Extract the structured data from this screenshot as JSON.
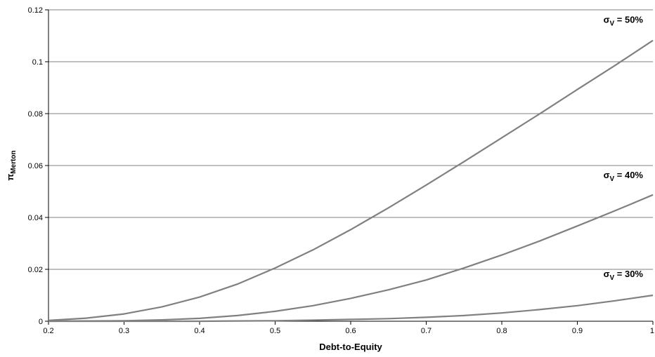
{
  "chart_data": {
    "type": "line",
    "title": "",
    "xlabel": "Debt-to-Equity",
    "ylabel": {
      "main": "π",
      "sub": "Merton"
    },
    "xlim": [
      0.2,
      1
    ],
    "ylim": [
      0,
      0.12
    ],
    "x_ticks": [
      "0.2",
      "0.3",
      "0.4",
      "0.5",
      "0.6",
      "0.7",
      "0.8",
      "0.9",
      "1"
    ],
    "y_ticks": [
      "0",
      "0.02",
      "0.04",
      "0.06",
      "0.08",
      "0.1",
      "0.12"
    ],
    "grid": "horizontal",
    "x": [
      0.2,
      0.25,
      0.3,
      0.35,
      0.4,
      0.45,
      0.5,
      0.55,
      0.6,
      0.65,
      0.7,
      0.75,
      0.8,
      0.85,
      0.9,
      0.95,
      1.0
    ],
    "series": [
      {
        "annotation": {
          "greek": "σ",
          "sub": "V",
          "text": " = 50%"
        },
        "values": [
          0.0003,
          0.0012,
          0.0028,
          0.0055,
          0.0093,
          0.0143,
          0.0205,
          0.0275,
          0.0353,
          0.0437,
          0.0525,
          0.0615,
          0.0707,
          0.0799,
          0.0893,
          0.0986,
          0.1082
        ]
      },
      {
        "annotation": {
          "greek": "σ",
          "sub": "V",
          "text": " = 40%"
        },
        "values": [
          0.0,
          0.0001,
          0.0002,
          0.0005,
          0.0011,
          0.0022,
          0.0038,
          0.006,
          0.0088,
          0.0121,
          0.0159,
          0.0205,
          0.0255,
          0.0309,
          0.0367,
          0.0426,
          0.0487
        ]
      },
      {
        "annotation": {
          "greek": "σ",
          "sub": "V",
          "text": " = 30%"
        },
        "values": [
          0.0,
          0.0,
          0.0,
          0.0,
          0.0,
          0.0001,
          0.0002,
          0.0004,
          0.0007,
          0.001,
          0.0015,
          0.0022,
          0.0032,
          0.0045,
          0.006,
          0.0079,
          0.01
        ]
      }
    ],
    "line_color": "#808080",
    "grid_color": "#808080"
  }
}
